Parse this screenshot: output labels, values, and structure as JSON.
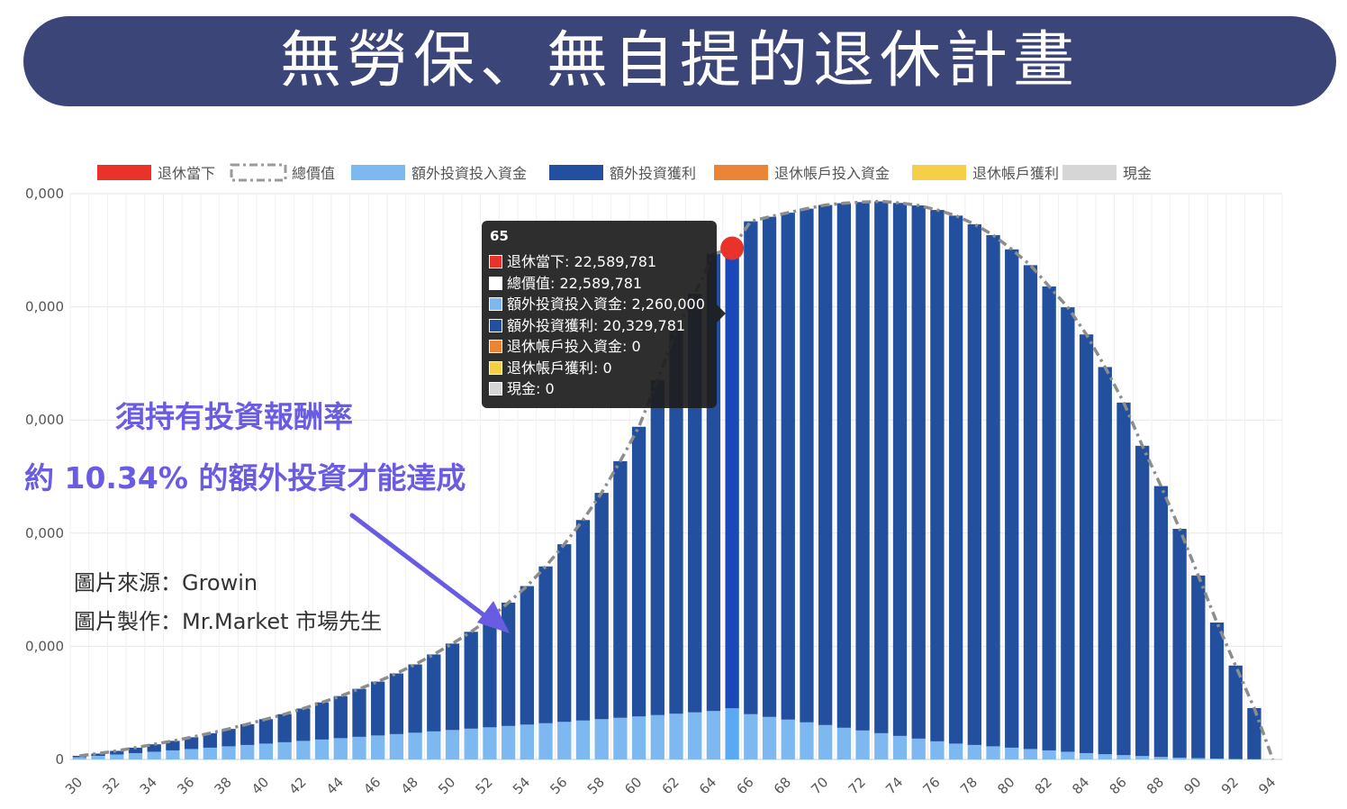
{
  "header": {
    "title": "無勞保、無自提的退休計畫"
  },
  "legend": [
    {
      "label": "退休當下",
      "color": "#e8322a",
      "style": "box"
    },
    {
      "label": "總價值",
      "color": "#9a9a9a",
      "style": "dashed"
    },
    {
      "label": "額外投資投入資金",
      "color": "#7eb8f0",
      "style": "box"
    },
    {
      "label": "額外投資獲利",
      "color": "#23509e",
      "style": "box"
    },
    {
      "label": "退休帳戶投入資金",
      "color": "#ea8437",
      "style": "box"
    },
    {
      "label": "退休帳戶獲利",
      "color": "#f6cf49",
      "style": "box"
    },
    {
      "label": "現金",
      "color": "#d6d6d6",
      "style": "box"
    }
  ],
  "tooltip": {
    "title": "65",
    "rows": [
      {
        "text": "退休當下: 22,589,781",
        "color": "#e8322a"
      },
      {
        "text": "總價值: 22,589,781",
        "color": "#ffffff"
      },
      {
        "text": "額外投資投入資金: 2,260,000",
        "color": "#7eb8f0"
      },
      {
        "text": "額外投資獲利: 20,329,781",
        "color": "#23509e"
      },
      {
        "text": "退休帳戶投入資金: 0",
        "color": "#ea8437"
      },
      {
        "text": "退休帳戶獲利: 0",
        "color": "#f6cf49"
      },
      {
        "text": "現金: 0",
        "color": "#d6d6d6"
      }
    ]
  },
  "annotation": {
    "line1": "須持有投資報酬率",
    "line2": "約 10.34% 的額外投資才能達成"
  },
  "credits": {
    "source": "圖片來源：Growin",
    "maker": "圖片製作：Mr.Market 市場先生"
  },
  "chart_data": {
    "type": "bar",
    "stacked": true,
    "y_tick_labels": [
      "0",
      "0,000",
      "0,000",
      "0,000",
      "0,000",
      "0,000"
    ],
    "x_tick_labels": [
      "30",
      "32",
      "34",
      "36",
      "38",
      "40",
      "42",
      "44",
      "46",
      "48",
      "50",
      "52",
      "54",
      "56",
      "58",
      "60",
      "62",
      "64",
      "66",
      "68",
      "70",
      "72",
      "74",
      "76",
      "78",
      "80",
      "82",
      "84",
      "86",
      "88",
      "90",
      "92",
      "94"
    ],
    "ylim": [
      0,
      25000000
    ],
    "grid": true,
    "legend_position": "top",
    "highlight_x": 65,
    "x": [
      30,
      31,
      32,
      33,
      34,
      35,
      36,
      37,
      38,
      39,
      40,
      41,
      42,
      43,
      44,
      45,
      46,
      47,
      48,
      49,
      50,
      51,
      52,
      53,
      54,
      55,
      56,
      57,
      58,
      59,
      60,
      61,
      62,
      63,
      64,
      65,
      66,
      67,
      68,
      69,
      70,
      71,
      72,
      73,
      74,
      75,
      76,
      77,
      78,
      79,
      80,
      81,
      82,
      83,
      84,
      85,
      86,
      87,
      88,
      89,
      90,
      91,
      92,
      93,
      94
    ],
    "series": [
      {
        "name": "額外投資投入資金",
        "color": "#7eb8f0",
        "values": [
          100000,
          160000,
          220000,
          280000,
          340000,
          400000,
          460000,
          520000,
          580000,
          640000,
          700000,
          760000,
          820000,
          880000,
          940000,
          1000000,
          1060000,
          1120000,
          1180000,
          1240000,
          1300000,
          1360000,
          1420000,
          1480000,
          1540000,
          1600000,
          1660000,
          1720000,
          1780000,
          1840000,
          1900000,
          1960000,
          2020000,
          2080000,
          2140000,
          2260000,
          2000000,
          1880000,
          1760000,
          1640000,
          1520000,
          1400000,
          1280000,
          1160000,
          1040000,
          920000,
          800000,
          700000,
          640000,
          580000,
          520000,
          460000,
          400000,
          340000,
          280000,
          230000,
          190000,
          150000,
          110000,
          80000,
          60000,
          40000,
          20000,
          10000,
          0
        ]
      },
      {
        "name": "額外投資獲利",
        "color": "#23509e",
        "values": [
          60000,
          100000,
          160000,
          240000,
          330000,
          420000,
          520000,
          640000,
          770000,
          920000,
          1080000,
          1240000,
          1430000,
          1640000,
          1860000,
          2120000,
          2380000,
          2680000,
          3020000,
          3400000,
          3820000,
          4280000,
          4820000,
          5450000,
          6120000,
          6930000,
          7850000,
          8860000,
          10000000,
          11340000,
          12800000,
          14800000,
          16920000,
          18500000,
          20200000,
          20329781,
          21780000,
          22100000,
          22400000,
          22700000,
          22980000,
          23180000,
          23350000,
          23500000,
          23550000,
          23560000,
          23480000,
          23330000,
          23010000,
          22590000,
          22020000,
          21380000,
          20500000,
          19640000,
          18500000,
          17110000,
          15580000,
          13710000,
          11970000,
          10110000,
          8070000,
          6010000,
          4130000,
          2260000,
          0
        ]
      }
    ],
    "total_line": {
      "name": "總價值",
      "style": "dash-dot",
      "values": [
        160000,
        260000,
        380000,
        520000,
        670000,
        820000,
        980000,
        1160000,
        1350000,
        1560000,
        1780000,
        2000000,
        2250000,
        2520000,
        2800000,
        3120000,
        3440000,
        3800000,
        4200000,
        4640000,
        5120000,
        5640000,
        6240000,
        6930000,
        7660000,
        8530000,
        9510000,
        10580000,
        11780000,
        13180000,
        14700000,
        16760000,
        18940000,
        20580000,
        22340000,
        22589781,
        23780000,
        23980000,
        24160000,
        24340000,
        24500000,
        24580000,
        24630000,
        24660000,
        24590000,
        24480000,
        24280000,
        24030000,
        23650000,
        23170000,
        22540000,
        21840000,
        20900000,
        19980000,
        18780000,
        17340000,
        15770000,
        13860000,
        12080000,
        10190000,
        8130000,
        6050000,
        4150000,
        2270000,
        0
      ]
    }
  }
}
